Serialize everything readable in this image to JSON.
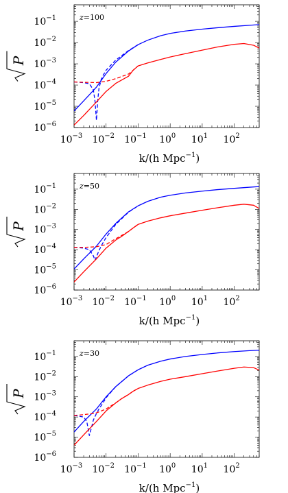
{
  "chart_data": [
    {
      "type": "line",
      "annotation": "z=100",
      "xlabel": "k/(h Mpc",
      "xlabel_sup": "−1",
      "xlabel_end": ")",
      "ylabel": "P",
      "xscale": "log",
      "yscale": "log",
      "xlim": [
        0.001,
        600
      ],
      "ylim": [
        1e-06,
        0.6
      ],
      "xticks": [
        {
          "base": "10",
          "exp": "−3"
        },
        {
          "base": "10",
          "exp": "−2"
        },
        {
          "base": "10",
          "exp": "−1"
        },
        {
          "base": "10",
          "exp": "0"
        },
        {
          "base": "10",
          "exp": "1"
        },
        {
          "base": "10",
          "exp": "2"
        }
      ],
      "yticks": [
        {
          "base": "10",
          "exp": "−6"
        },
        {
          "base": "10",
          "exp": "−5"
        },
        {
          "base": "10",
          "exp": "−4"
        },
        {
          "base": "10",
          "exp": "−3"
        },
        {
          "base": "10",
          "exp": "−2"
        },
        {
          "base": "10",
          "exp": "−1"
        }
      ],
      "series": [
        {
          "color": "#0000ff",
          "style": "solid",
          "x": [
            0.001,
            0.002,
            0.005,
            0.01,
            0.02,
            0.05,
            0.1,
            0.2,
            0.5,
            1,
            3,
            10,
            30,
            100,
            300,
            600
          ],
          "y": [
            6e-06,
            1.8e-05,
            8e-05,
            0.00035,
            0.0012,
            0.004,
            0.008,
            0.013,
            0.021,
            0.027,
            0.035,
            0.043,
            0.05,
            0.058,
            0.065,
            0.07
          ]
        },
        {
          "color": "#0000ff",
          "style": "dashed",
          "x": [
            0.001,
            0.002,
            0.003,
            0.004,
            0.0045,
            0.005,
            0.0055,
            0.006,
            0.007,
            0.008,
            0.01,
            0.02,
            0.05,
            0.1
          ],
          "y": [
            0.00014,
            0.00013,
            0.000115,
            6e-05,
            1.8e-05,
            2.2e-06,
            2e-05,
            7e-05,
            0.00018,
            0.00028,
            0.0005,
            0.0015,
            0.0042,
            0.008
          ]
        },
        {
          "color": "#ff0000",
          "style": "solid",
          "x": [
            0.001,
            0.002,
            0.005,
            0.01,
            0.02,
            0.03,
            0.05,
            0.07,
            0.1,
            0.2,
            0.5,
            1,
            3,
            10,
            30,
            100,
            200,
            400,
            600
          ],
          "y": [
            1.3e-06,
            3.7e-06,
            1.6e-05,
            5e-05,
            0.00012,
            0.00017,
            0.00026,
            0.0005,
            0.0008,
            0.0011,
            0.0016,
            0.0021,
            0.003,
            0.0044,
            0.0062,
            0.0083,
            0.009,
            0.0075,
            0.0055
          ]
        },
        {
          "color": "#ff0000",
          "style": "dashed",
          "x": [
            0.001,
            0.002,
            0.005,
            0.01,
            0.02,
            0.03,
            0.05,
            0.07,
            0.1
          ],
          "y": [
            0.00014,
            0.000135,
            0.00013,
            0.00015,
            0.0002,
            0.00025,
            0.00033,
            0.0005,
            0.0008
          ]
        }
      ]
    },
    {
      "type": "line",
      "annotation": "z=50",
      "xlabel": "k/(h Mpc",
      "xlabel_sup": "−1",
      "xlabel_end": ")",
      "ylabel": "P",
      "xscale": "log",
      "yscale": "log",
      "xlim": [
        0.001,
        600
      ],
      "ylim": [
        1e-06,
        0.6
      ],
      "xticks": [
        {
          "base": "10",
          "exp": "−3"
        },
        {
          "base": "10",
          "exp": "−2"
        },
        {
          "base": "10",
          "exp": "−1"
        },
        {
          "base": "10",
          "exp": "0"
        },
        {
          "base": "10",
          "exp": "1"
        },
        {
          "base": "10",
          "exp": "2"
        }
      ],
      "yticks": [
        {
          "base": "10",
          "exp": "−6"
        },
        {
          "base": "10",
          "exp": "−5"
        },
        {
          "base": "10",
          "exp": "−4"
        },
        {
          "base": "10",
          "exp": "−3"
        },
        {
          "base": "10",
          "exp": "−2"
        },
        {
          "base": "10",
          "exp": "−1"
        }
      ],
      "series": [
        {
          "color": "#0000ff",
          "style": "solid",
          "x": [
            0.001,
            0.002,
            0.005,
            0.01,
            0.02,
            0.05,
            0.1,
            0.2,
            0.5,
            1,
            3,
            10,
            30,
            100,
            300,
            600
          ],
          "y": [
            1.1e-05,
            3.5e-05,
            0.00015,
            0.0006,
            0.002,
            0.0075,
            0.015,
            0.025,
            0.04,
            0.05,
            0.065,
            0.08,
            0.095,
            0.11,
            0.125,
            0.135
          ]
        },
        {
          "color": "#0000ff",
          "style": "dashed",
          "x": [
            0.001,
            0.002,
            0.003,
            0.004,
            0.0045,
            0.005,
            0.006,
            0.007,
            0.008,
            0.01,
            0.02,
            0.05,
            0.1
          ],
          "y": [
            0.00013,
            0.00012,
            0.0001,
            5e-05,
            3e-05,
            4.5e-05,
            9e-05,
            0.00015,
            0.00022,
            0.0004,
            0.0018,
            0.0072,
            0.015
          ]
        },
        {
          "color": "#ff0000",
          "style": "solid",
          "x": [
            0.001,
            0.002,
            0.005,
            0.01,
            0.02,
            0.03,
            0.05,
            0.07,
            0.1,
            0.2,
            0.5,
            1,
            3,
            10,
            30,
            100,
            200,
            400,
            600
          ],
          "y": [
            2.5e-06,
            8e-06,
            3.5e-05,
            0.00012,
            0.0003,
            0.00045,
            0.0008,
            0.0012,
            0.0018,
            0.0026,
            0.0038,
            0.0048,
            0.0065,
            0.009,
            0.012,
            0.016,
            0.018,
            0.016,
            0.011
          ]
        },
        {
          "color": "#ff0000",
          "style": "dashed",
          "x": [
            0.001,
            0.002,
            0.005,
            0.01,
            0.02,
            0.03,
            0.05,
            0.07,
            0.1
          ],
          "y": [
            0.00013,
            0.00013,
            0.00014,
            0.00018,
            0.00035,
            0.0005,
            0.0008,
            0.0012,
            0.0018
          ]
        }
      ]
    },
    {
      "type": "line",
      "annotation": "z=30",
      "xlabel": "k/(h Mpc",
      "xlabel_sup": "−1",
      "xlabel_end": ")",
      "ylabel": "P",
      "xscale": "log",
      "yscale": "log",
      "xlim": [
        0.001,
        600
      ],
      "ylim": [
        1e-06,
        0.6
      ],
      "xticks": [
        {
          "base": "10",
          "exp": "−3"
        },
        {
          "base": "10",
          "exp": "−2"
        },
        {
          "base": "10",
          "exp": "−1"
        },
        {
          "base": "10",
          "exp": "0"
        },
        {
          "base": "10",
          "exp": "1"
        },
        {
          "base": "10",
          "exp": "2"
        }
      ],
      "yticks": [
        {
          "base": "10",
          "exp": "−6"
        },
        {
          "base": "10",
          "exp": "−5"
        },
        {
          "base": "10",
          "exp": "−4"
        },
        {
          "base": "10",
          "exp": "−3"
        },
        {
          "base": "10",
          "exp": "−2"
        },
        {
          "base": "10",
          "exp": "−1"
        }
      ],
      "series": [
        {
          "color": "#0000ff",
          "style": "solid",
          "x": [
            0.001,
            0.002,
            0.005,
            0.01,
            0.02,
            0.05,
            0.1,
            0.2,
            0.5,
            1,
            3,
            10,
            30,
            100,
            300,
            600
          ],
          "y": [
            1.8e-05,
            6e-05,
            0.00025,
            0.001,
            0.0032,
            0.011,
            0.022,
            0.037,
            0.058,
            0.075,
            0.1,
            0.125,
            0.15,
            0.175,
            0.195,
            0.205
          ]
        },
        {
          "color": "#0000ff",
          "style": "dashed",
          "x": [
            0.001,
            0.002,
            0.0025,
            0.003,
            0.0035,
            0.004,
            0.005,
            0.006,
            0.008,
            0.01,
            0.02,
            0.05,
            0.1
          ],
          "y": [
            0.00012,
            0.0001,
            6e-05,
            1.2e-05,
            3e-05,
            7e-05,
            0.00015,
            0.00025,
            0.0005,
            0.0009,
            0.0032,
            0.011,
            0.022
          ]
        },
        {
          "color": "#ff0000",
          "style": "solid",
          "x": [
            0.001,
            0.002,
            0.005,
            0.01,
            0.02,
            0.03,
            0.05,
            0.07,
            0.1,
            0.2,
            0.5,
            1,
            3,
            10,
            30,
            100,
            200,
            400,
            600
          ],
          "y": [
            4e-06,
            1.3e-05,
            6e-05,
            0.0002,
            0.0005,
            0.0008,
            0.0013,
            0.0019,
            0.0026,
            0.0038,
            0.0058,
            0.0075,
            0.01,
            0.014,
            0.019,
            0.026,
            0.03,
            0.028,
            0.021
          ]
        },
        {
          "color": "#ff0000",
          "style": "dashed",
          "x": [
            0.001,
            0.002,
            0.005,
            0.01,
            0.02,
            0.03,
            0.05,
            0.07,
            0.1
          ],
          "y": [
            0.00012,
            0.00013,
            0.00016,
            0.00025,
            0.0005,
            0.0008,
            0.0013,
            0.0019,
            0.0026
          ]
        }
      ]
    }
  ]
}
